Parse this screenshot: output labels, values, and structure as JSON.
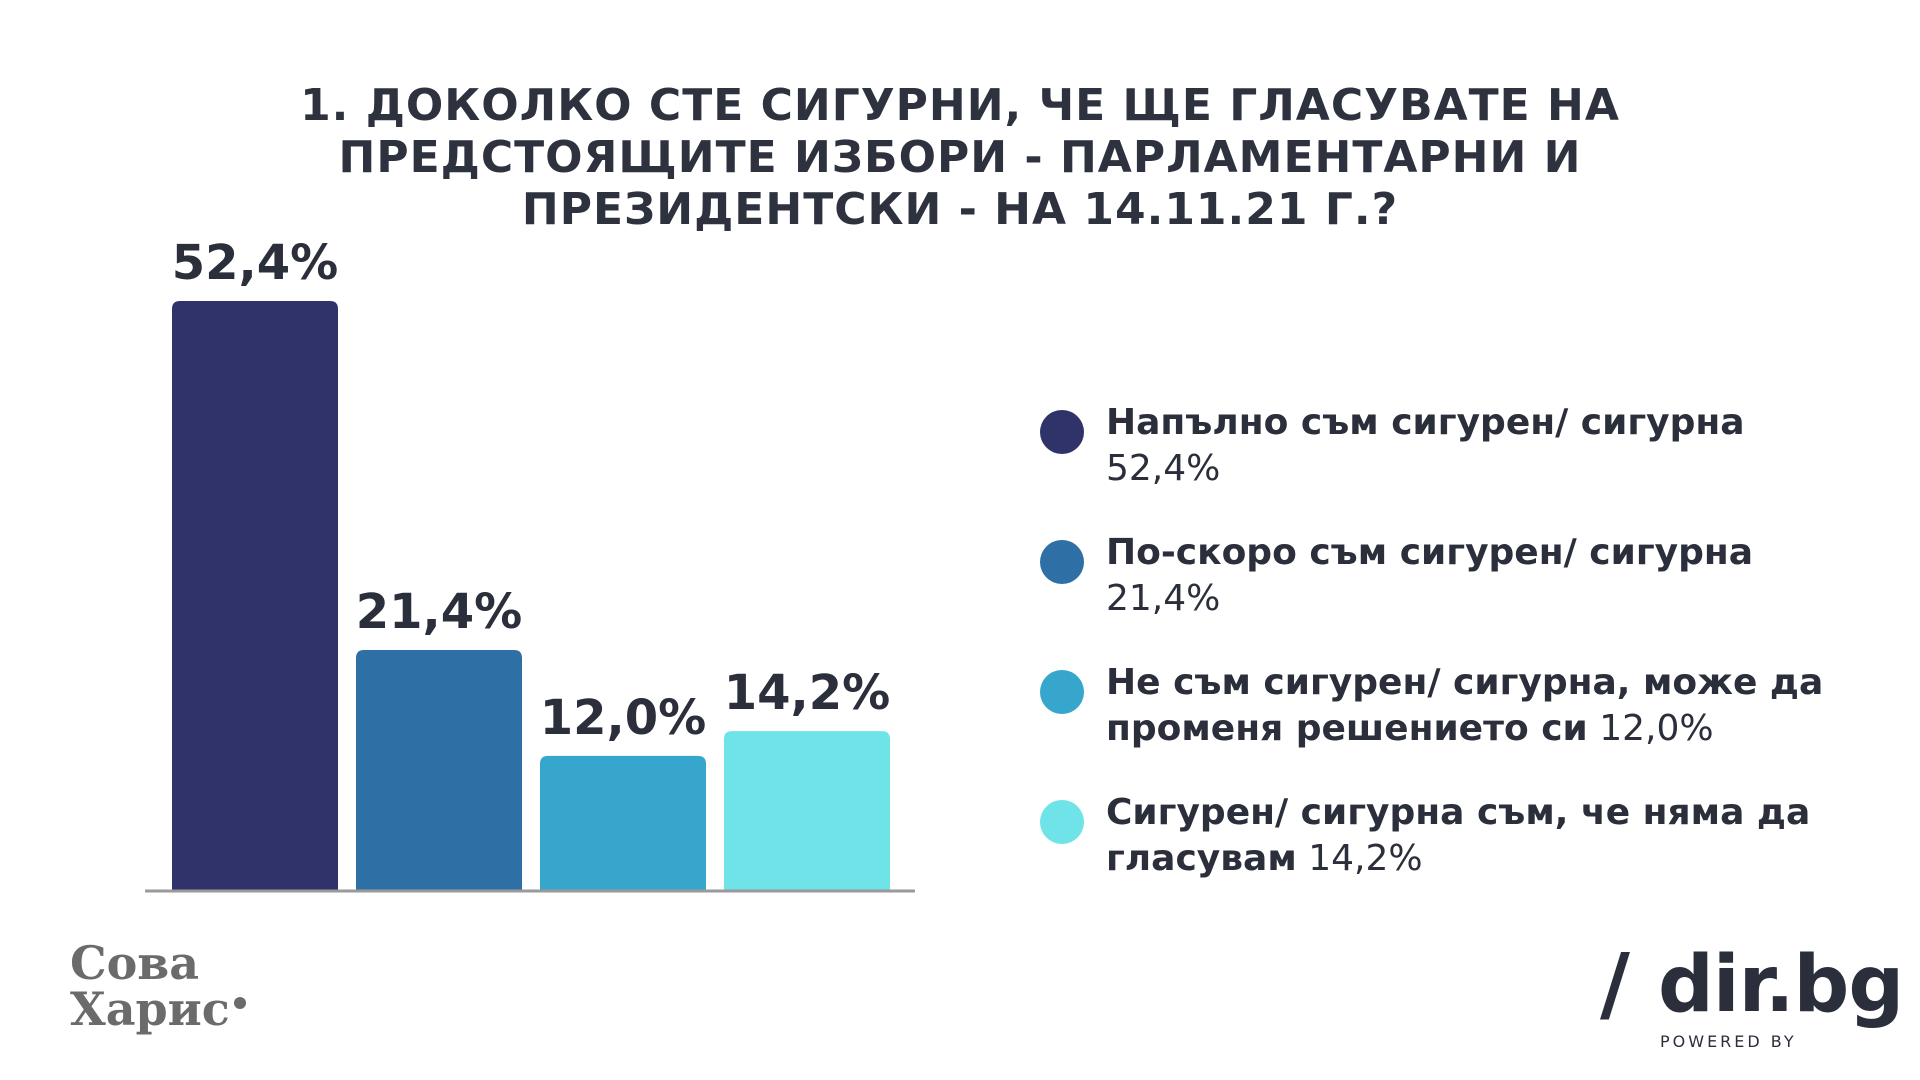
{
  "title_lines": [
    "1.  ДОКОЛКО СТЕ СИГУРНИ, ЧЕ ЩЕ ГЛАСУВАТЕ НА",
    "ПРЕДСТОЯЩИТЕ ИЗБОРИ - ПАРЛАМЕНТАРНИ И",
    "ПРЕЗИДЕНТСКИ - НА 14.11.21 Г.?"
  ],
  "chart_data": {
    "type": "bar",
    "categories": [
      "Напълно съм сигурен/ сигурна",
      "По-скоро съм сигурен/ сигурна",
      "Не съм сигурен/ сигурна, може да променя решението си",
      "Сигурен/ сигурна съм, че няма да гласувам"
    ],
    "values": [
      52.4,
      21.4,
      12.0,
      14.2
    ],
    "value_labels": [
      "52,4%",
      "21,4%",
      "12,0%",
      "14,2%"
    ],
    "colors": [
      "#303369",
      "#2e6fa5",
      "#36a6cd",
      "#6ee3e8"
    ],
    "ylim": [
      0,
      52.4
    ],
    "grid": false,
    "legend_position": "right"
  },
  "legend": [
    {
      "label": "Напълно съм сигурен/ сигурна",
      "value": "52,4%",
      "color": "#303369"
    },
    {
      "label": "По-скоро съм сигурен/ сигурна",
      "value": "21,4%",
      "color": "#2e6fa5"
    },
    {
      "label": "Не съм сигурен/ сигурна, може да променя решението си",
      "value": "12,0%",
      "color": "#36a6cd"
    },
    {
      "label": "Сигурен/ сигурна съм, че няма да гласувам",
      "value": "14,2%",
      "color": "#6ee3e8"
    }
  ],
  "logos": {
    "left_line1": "Сова",
    "left_line2": "Харис",
    "right_slash": "/",
    "right_name": "dir.bg",
    "right_tagline": "POWERED BY"
  }
}
